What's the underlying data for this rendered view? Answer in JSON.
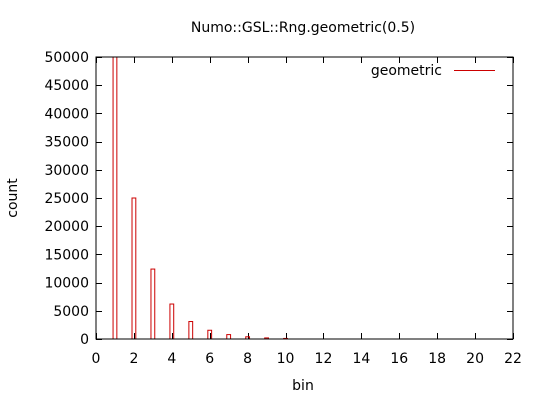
{
  "chart_data": {
    "type": "bar",
    "title": "Numo::GSL::Rng.geometric(0.5)",
    "xlabel": "bin",
    "ylabel": "count",
    "xlim": [
      0,
      22
    ],
    "ylim": [
      0,
      50000
    ],
    "xticks": [
      0,
      2,
      4,
      6,
      8,
      10,
      12,
      14,
      16,
      18,
      20,
      22
    ],
    "yticks": [
      0,
      5000,
      10000,
      15000,
      20000,
      25000,
      30000,
      35000,
      40000,
      45000,
      50000
    ],
    "grid": false,
    "legend_position": "top-right",
    "series": [
      {
        "name": "geometric",
        "color": "#cc0000",
        "x": [
          1,
          2,
          3,
          4,
          5,
          6,
          7,
          8,
          9,
          10
        ],
        "values": [
          50000,
          25000,
          12400,
          6200,
          3100,
          1550,
          780,
          390,
          190,
          100
        ]
      }
    ]
  }
}
